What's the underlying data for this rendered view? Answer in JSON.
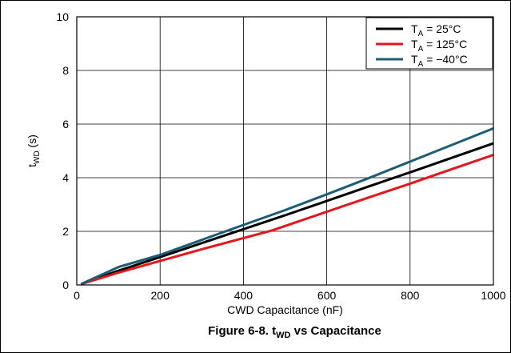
{
  "chart_data": {
    "type": "line",
    "title": "Figure 6-8. t",
    "title_sub": "WD",
    "title_rest": " vs Capacitance",
    "xlabel": "CWD Capacitance (nF)",
    "ylabel_main": "t",
    "ylabel_sub": "WD",
    "ylabel_rest": " (s)",
    "xlim": [
      0,
      1000
    ],
    "ylim": [
      0,
      10
    ],
    "x_ticks": [
      0,
      200,
      400,
      600,
      800,
      1000
    ],
    "y_ticks": [
      0,
      2,
      4,
      6,
      8,
      10
    ],
    "grid": true,
    "legend_position": "top-right",
    "series": [
      {
        "name_main": "T",
        "name_sub": "A",
        "name_rest": " = 25°C",
        "color": "#000000",
        "x": [
          10,
          100,
          200,
          300,
          400,
          500,
          600,
          700,
          800,
          900,
          1000
        ],
        "y": [
          0.03,
          0.53,
          1.04,
          1.56,
          2.08,
          2.6,
          3.13,
          3.67,
          4.2,
          4.74,
          5.28
        ]
      },
      {
        "name_main": "T",
        "name_sub": "A",
        "name_rest": " = 125°C",
        "color": "#e8141a",
        "x": [
          10,
          100,
          200,
          300,
          400,
          470,
          500,
          600,
          700,
          800,
          900,
          1000
        ],
        "y": [
          0.03,
          0.46,
          0.9,
          1.33,
          1.75,
          2.04,
          2.2,
          2.73,
          3.26,
          3.78,
          4.32,
          4.85
        ]
      },
      {
        "name_main": "T",
        "name_sub": "A",
        "name_rest": " = −40°C",
        "color": "#1b5e74",
        "x": [
          10,
          100,
          200,
          300,
          400,
          500,
          600,
          700,
          800,
          900,
          1000
        ],
        "y": [
          0.03,
          0.67,
          1.12,
          1.68,
          2.24,
          2.79,
          3.38,
          3.98,
          4.6,
          5.22,
          5.84
        ]
      }
    ]
  }
}
